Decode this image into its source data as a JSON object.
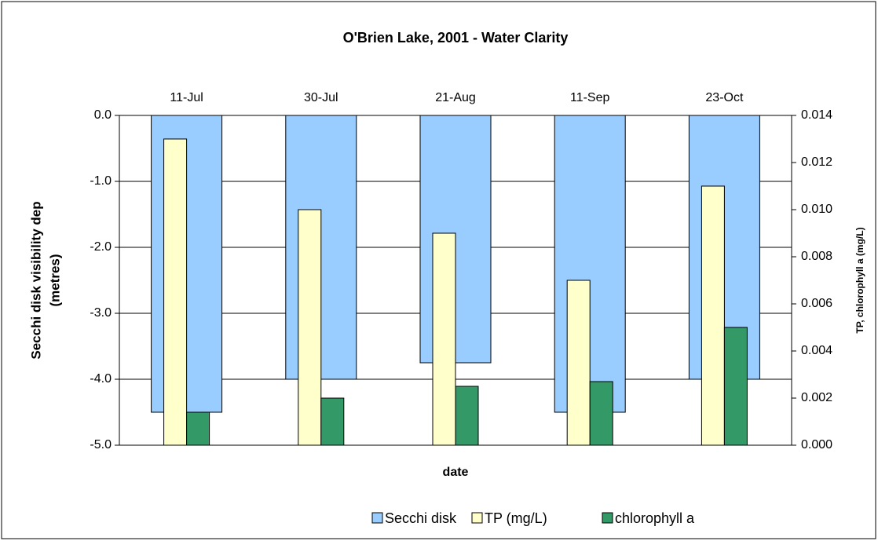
{
  "chart_data": {
    "type": "bar",
    "title": "O'Brien Lake, 2001 - Water Clarity",
    "x_label": "date",
    "y_label": [
      "Secchi disk visibility dep",
      "(metres)"
    ],
    "y2_label": "TP, chlorophyll a (mg/L)",
    "categories": [
      "11-Jul",
      "30-Jul",
      "21-Aug",
      "11-Sep",
      "23-Oct"
    ],
    "series": [
      {
        "name": "Secchi disk",
        "color": "#99ccff",
        "axis": "y",
        "values": [
          -4.5,
          -4.0,
          -3.75,
          -4.5,
          -4.0
        ]
      },
      {
        "name": "TP (mg/L)",
        "color": "#ffffcc",
        "axis": "y2",
        "values": [
          0.013,
          0.01,
          0.009,
          0.007,
          0.011
        ]
      },
      {
        "name": "chlorophyll a",
        "color": "#339966",
        "axis": "y2",
        "values": [
          0.0014,
          0.002,
          0.0025,
          0.0027,
          0.005
        ]
      }
    ],
    "ylim": [
      -5,
      0
    ],
    "yticks": [
      {
        "value": -5,
        "label": "-5.0"
      },
      {
        "value": -4,
        "label": "-4.0"
      },
      {
        "value": -3,
        "label": "-3.0"
      },
      {
        "value": -2,
        "label": "-2.0"
      },
      {
        "value": -1,
        "label": "-1.0"
      },
      {
        "value": 0,
        "label": "0.0"
      }
    ],
    "y2lim": [
      0,
      0.014
    ],
    "y2ticks": [
      {
        "value": 0,
        "label": "0.000"
      },
      {
        "value": 0.002,
        "label": "0.002"
      },
      {
        "value": 0.004,
        "label": "0.004"
      },
      {
        "value": 0.006,
        "label": "0.006"
      },
      {
        "value": 0.008,
        "label": "0.008"
      },
      {
        "value": 0.01,
        "label": "0.010"
      },
      {
        "value": 0.012,
        "label": "0.012"
      },
      {
        "value": 0.014,
        "label": "0.014"
      }
    ],
    "grid": true,
    "legend": "bottom"
  }
}
